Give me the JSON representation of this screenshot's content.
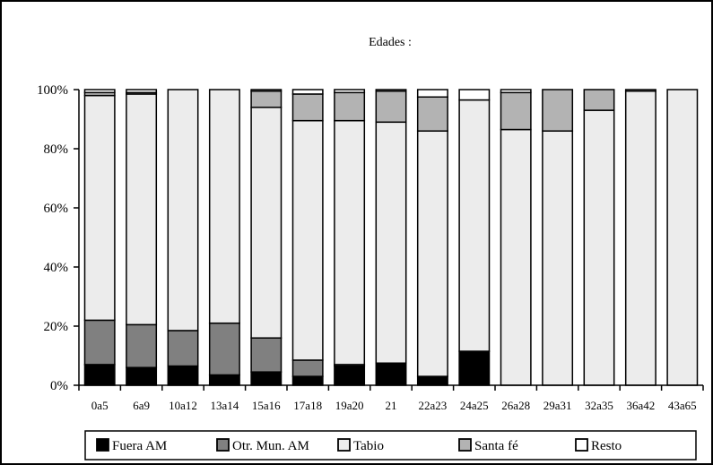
{
  "chart_data": {
    "type": "bar",
    "stacked": true,
    "title": "Edades :",
    "xlabel": "",
    "ylabel": "",
    "ylim": [
      0,
      100
    ],
    "yticks": [
      "0%",
      "20%",
      "40%",
      "60%",
      "80%",
      "100%"
    ],
    "grid": false,
    "legend_position": "bottom",
    "categories": [
      "0a5",
      "6a9",
      "10a12",
      "13a14",
      "15a16",
      "17a18",
      "19a20",
      "21",
      "22a23",
      "24a25",
      "26a28",
      "29a31",
      "32a35",
      "36a42",
      "43a65"
    ],
    "series": [
      {
        "name": "Fuera AM",
        "color": "#000000",
        "values": [
          7,
          6,
          6.5,
          3.5,
          4.5,
          3,
          6.5,
          7.5,
          3,
          11.5,
          0,
          0,
          0,
          0,
          0
        ]
      },
      {
        "name": "Otr. Mun. AM",
        "color": "#808080",
        "values": [
          15,
          14.5,
          12,
          17.5,
          11.5,
          5.5,
          0.5,
          0,
          0,
          0,
          0,
          0,
          0,
          0,
          0
        ]
      },
      {
        "name": "Tabio",
        "color": "#ececec",
        "values": [
          76,
          78,
          81.5,
          79,
          78,
          81,
          82.5,
          81.5,
          83,
          85,
          86.5,
          86,
          93,
          99.5,
          100
        ]
      },
      {
        "name": "Santa fé",
        "color": "#b3b3b3",
        "values": [
          1,
          0.5,
          0,
          0,
          5.5,
          9,
          9.5,
          10.5,
          11.5,
          0,
          12.5,
          14,
          7,
          0,
          0
        ]
      },
      {
        "name": "Resto",
        "color": "#ffffff",
        "values": [
          1,
          1,
          0,
          0,
          0.5,
          1.5,
          1,
          0.5,
          2.5,
          3.5,
          1,
          0,
          0,
          0.5,
          0
        ]
      }
    ]
  }
}
